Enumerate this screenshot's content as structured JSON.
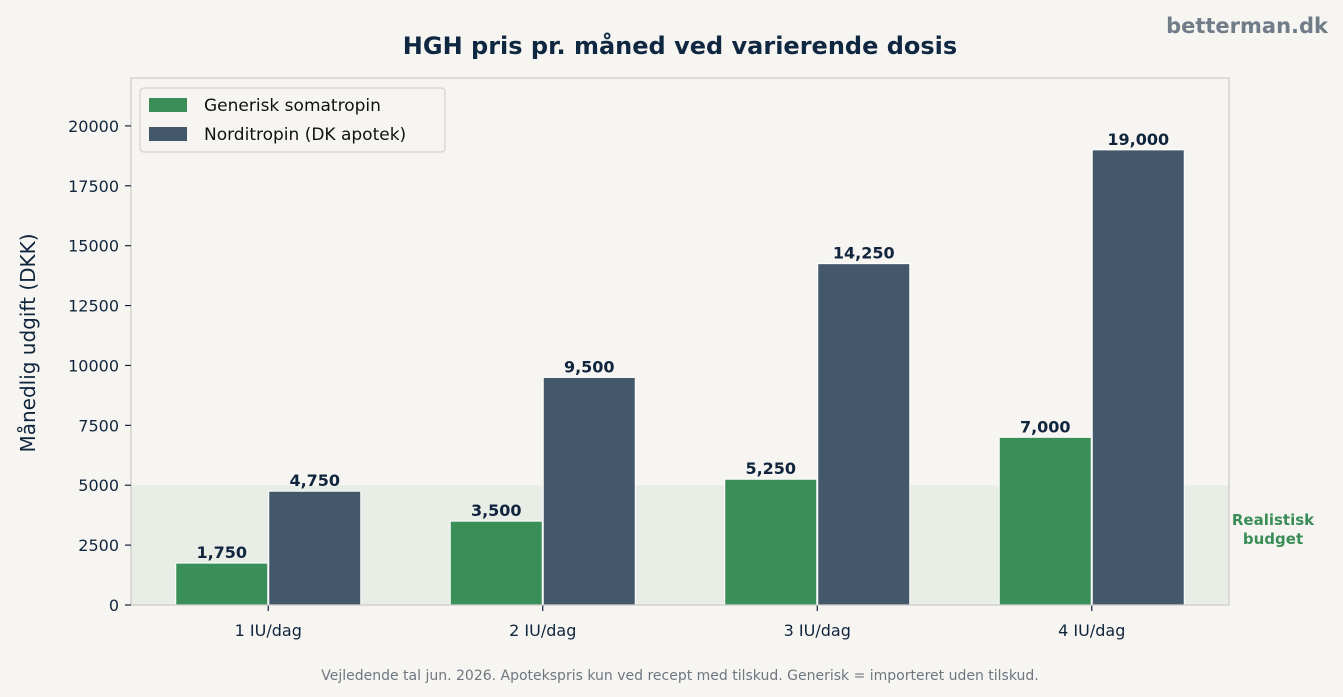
{
  "brand": "betterman.dk",
  "chart_data": {
    "type": "bar",
    "title": "HGH pris pr. måned ved varierende dosis",
    "xlabel": "",
    "ylabel": "Månedlig udgift (DKK)",
    "categories": [
      "1 IU/dag",
      "2 IU/dag",
      "3 IU/dag",
      "4 IU/dag"
    ],
    "series": [
      {
        "name": "Generisk somatropin",
        "values": [
          1750,
          3500,
          5250,
          7000
        ],
        "labels": [
          "1,750",
          "3,500",
          "5,250",
          "7,000"
        ],
        "color": "#3a8f59"
      },
      {
        "name": "Norditropin (DK apotek)",
        "values": [
          4750,
          9500,
          14250,
          19000
        ],
        "labels": [
          "4,750",
          "9,500",
          "14,250",
          "19,000"
        ],
        "color": "#44586b"
      }
    ],
    "ylim": [
      0,
      22000
    ],
    "yticks": [
      0,
      2500,
      5000,
      7500,
      10000,
      12500,
      15000,
      17500,
      20000
    ],
    "grid": false,
    "legend_position": "top-left",
    "shaded_band": {
      "from": 0,
      "to": 5000,
      "label": [
        "Realistisk",
        "budget"
      ],
      "color": "#3a8d57"
    }
  },
  "footnote": "Vejledende tal jun. 2026. Apotekspris kun ved recept med tilskud. Generisk = importeret uden tilskud."
}
